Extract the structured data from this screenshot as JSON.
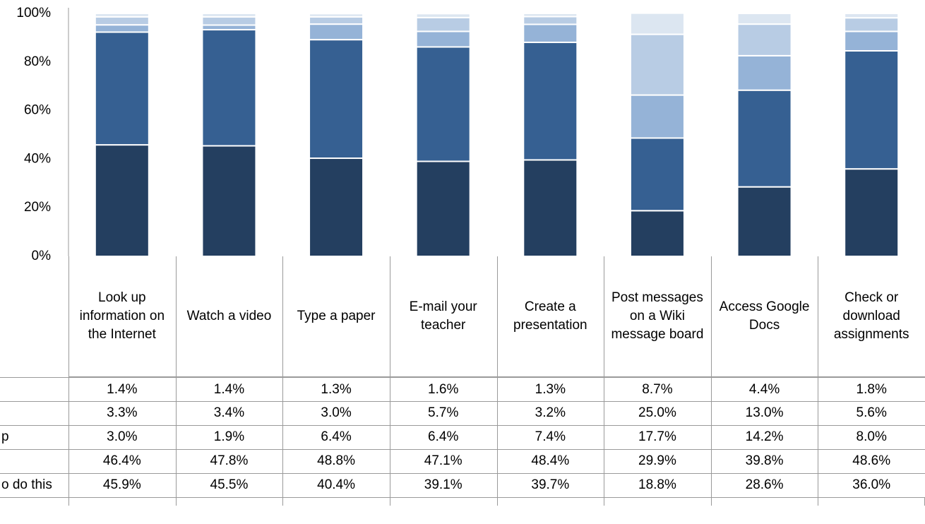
{
  "chart_data": {
    "type": "stacked_bar",
    "categories": [
      "Look up information on the Internet",
      "Watch a video",
      "Type a paper",
      "E-mail your teacher",
      "Create a presentation",
      "Post messages on a Wiki message board",
      "Access Google Docs",
      "Check or download assignments"
    ],
    "series": [
      {
        "name": null,
        "color": "#dce6f1",
        "values": [
          1.4,
          1.4,
          1.3,
          1.6,
          1.3,
          8.7,
          4.4,
          1.8
        ],
        "value_labels": [
          "1.4%",
          "1.4%",
          "1.3%",
          "1.6%",
          "1.3%",
          "8.7%",
          "4.4%",
          "1.8%"
        ]
      },
      {
        "name": null,
        "color": "#b8cce4",
        "values": [
          3.3,
          3.4,
          3.0,
          5.7,
          3.2,
          25.0,
          13.0,
          5.6
        ],
        "value_labels": [
          "3.3%",
          "3.4%",
          "3.0%",
          "5.7%",
          "3.2%",
          "25.0%",
          "13.0%",
          "5.6%"
        ]
      },
      {
        "name": "p",
        "color": "#95b3d7",
        "values": [
          3.0,
          1.9,
          6.4,
          6.4,
          7.4,
          17.7,
          14.2,
          8.0
        ],
        "value_labels": [
          "3.0%",
          "1.9%",
          "6.4%",
          "6.4%",
          "7.4%",
          "17.7%",
          "14.2%",
          "8.0%"
        ]
      },
      {
        "name": null,
        "color": "#366092",
        "values": [
          46.4,
          47.8,
          48.8,
          47.1,
          48.4,
          29.9,
          39.8,
          48.6
        ],
        "value_labels": [
          "46.4%",
          "47.8%",
          "48.8%",
          "47.1%",
          "48.4%",
          "29.9%",
          "39.8%",
          "48.6%"
        ]
      },
      {
        "name": "o do this",
        "color": "#243f60",
        "values": [
          45.9,
          45.5,
          40.4,
          39.1,
          39.7,
          18.8,
          28.6,
          36.0
        ],
        "value_labels": [
          "45.9%",
          "45.5%",
          "40.4%",
          "39.1%",
          "39.7%",
          "18.8%",
          "28.6%",
          "36.0%"
        ]
      }
    ],
    "ylim": [
      0,
      100
    ],
    "yticks": [
      {
        "value": 0,
        "label": "0%"
      },
      {
        "value": 20,
        "label": "20%"
      },
      {
        "value": 40,
        "label": "40%"
      },
      {
        "value": 60,
        "label": "60%"
      },
      {
        "value": 80,
        "label": "80%"
      },
      {
        "value": 100,
        "label": "100%"
      }
    ],
    "grid": false
  }
}
